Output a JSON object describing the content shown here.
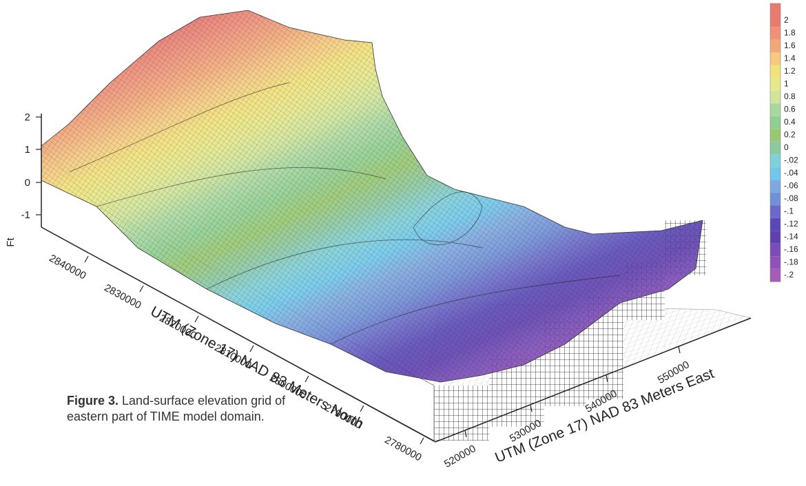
{
  "figure": {
    "caption_label": "Figure 3.",
    "caption_line1": "Land-surface elevation grid of",
    "caption_line2": "eastern part of TIME model domain."
  },
  "colorbar": {
    "labels": [
      "2",
      "1.8",
      "1.6",
      "1.4",
      "1.2",
      "1",
      "0.8",
      "0.6",
      "0.4",
      "0.2",
      "0",
      "-.02",
      "-.04",
      "-.06",
      "-.08",
      "-.1",
      "-.12",
      "-.14",
      "-.16",
      "-.18",
      "-.2"
    ],
    "colors": [
      "#e87a70",
      "#ef9078",
      "#f3a878",
      "#f6c880",
      "#f2e27a",
      "#e6e88a",
      "#cfe59a",
      "#a8d8a0",
      "#8fcf90",
      "#98c870",
      "#8cc8a0",
      "#7fd0d8",
      "#6fc8ec",
      "#7ea8e0",
      "#7090d8",
      "#6a68c8",
      "#5a48b8",
      "#6040b0",
      "#7a4cb8",
      "#9050b8",
      "#a45cb8"
    ]
  },
  "z_axis": {
    "label": "Ft",
    "ticks": [
      "2",
      "1",
      "0",
      "-1"
    ]
  },
  "north_axis": {
    "title": "UTM (Zone 17) NAD 83 Meters North",
    "ticks": [
      "2840000",
      "2830000",
      "2820000",
      "2810000",
      "2800000",
      "2790000",
      "2780000"
    ]
  },
  "east_axis": {
    "title": "UTM (Zone 17) NAD 83 Meters East",
    "ticks": [
      "520000",
      "530000",
      "540000",
      "550000"
    ]
  }
}
